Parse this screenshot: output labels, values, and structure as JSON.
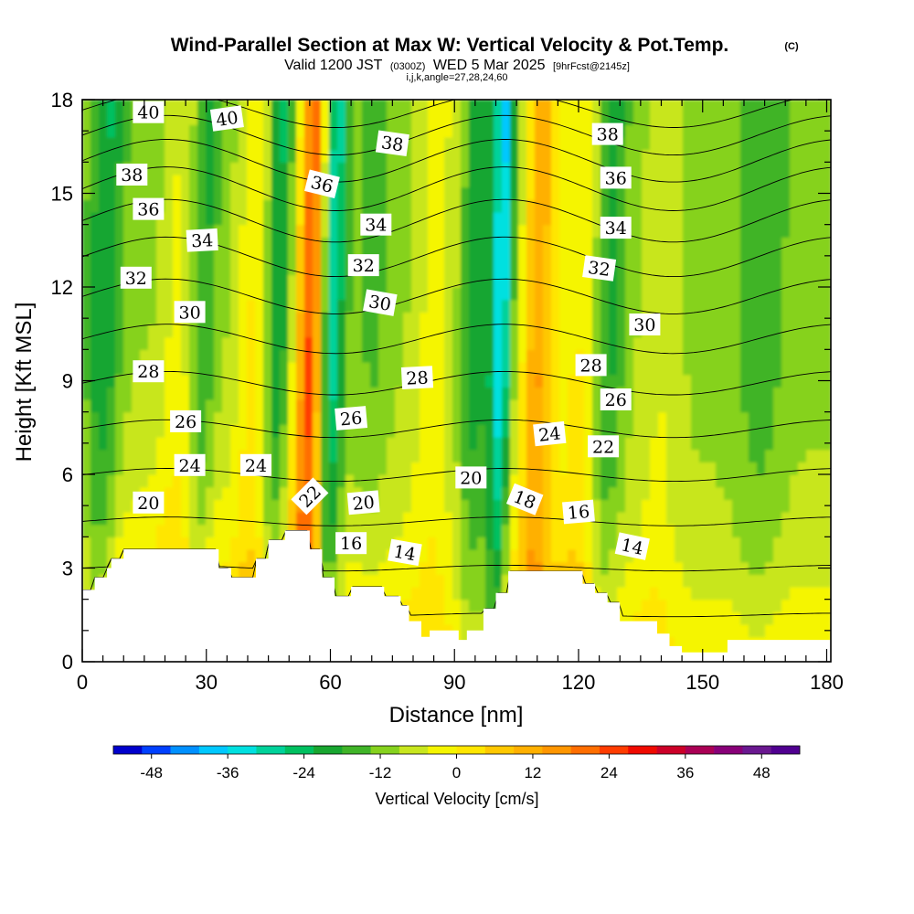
{
  "title": {
    "main": "Wind-Parallel Section at Max W: Vertical Velocity & Pot.Temp.",
    "copyright": "(C)",
    "valid_prefix": "Valid 1200 JST",
    "valid_utc": "(0300Z)",
    "valid_date": "WED 5 Mar 2025",
    "forecast": "[9hrFcst@2145z]",
    "ijk": "i,j,k,angle=27,28,24,60"
  },
  "chart_data": {
    "type": "heatmap",
    "xlabel": "Distance [nm]",
    "ylabel": "Height [Kft MSL]",
    "xlim": [
      0,
      181
    ],
    "ylim": [
      0,
      18
    ],
    "x_ticks": [
      "0",
      "30",
      "60",
      "90",
      "120",
      "150",
      "180"
    ],
    "y_ticks": [
      "0",
      "3",
      "6",
      "9",
      "12",
      "15",
      "18"
    ],
    "colorbar": {
      "title": "Vertical Velocity [cm/s]",
      "ticks": [
        "-48",
        "-36",
        "-24",
        "-12",
        "0",
        "12",
        "24",
        "36",
        "48"
      ],
      "range": [
        -54,
        54
      ],
      "bin_width": 6,
      "colors": [
        "#0000cc",
        "#0040ff",
        "#0090ff",
        "#00c8ff",
        "#00e0e0",
        "#00d29a",
        "#00c060",
        "#18a630",
        "#40b428",
        "#86d21e",
        "#c8e61e",
        "#f5f500",
        "#ffe600",
        "#ffc800",
        "#ffb000",
        "#ff9600",
        "#ff6e00",
        "#ff3c00",
        "#f00a00",
        "#cc0028",
        "#aa0055",
        "#880078",
        "#6a1890",
        "#500090"
      ]
    },
    "terrain_kft": [
      [
        0,
        2.3
      ],
      [
        3,
        2.3
      ],
      [
        3,
        2.7
      ],
      [
        6,
        2.7
      ],
      [
        6,
        3.0
      ],
      [
        7,
        3.0
      ],
      [
        7,
        3.3
      ],
      [
        10,
        3.3
      ],
      [
        10,
        3.6
      ],
      [
        33,
        3.6
      ],
      [
        33,
        3.0
      ],
      [
        36,
        3.0
      ],
      [
        36,
        2.7
      ],
      [
        42,
        2.7
      ],
      [
        42,
        3.3
      ],
      [
        45,
        3.3
      ],
      [
        45,
        3.9
      ],
      [
        49,
        3.9
      ],
      [
        49,
        4.2
      ],
      [
        55,
        4.2
      ],
      [
        55,
        3.6
      ],
      [
        58,
        3.6
      ],
      [
        58,
        2.7
      ],
      [
        61,
        2.7
      ],
      [
        61,
        2.1
      ],
      [
        65,
        2.1
      ],
      [
        65,
        2.4
      ],
      [
        73,
        2.4
      ],
      [
        73,
        2.1
      ],
      [
        77,
        2.1
      ],
      [
        77,
        1.8
      ],
      [
        79,
        1.8
      ],
      [
        79,
        1.3
      ],
      [
        82,
        1.3
      ],
      [
        82,
        0.8
      ],
      [
        84,
        0.8
      ],
      [
        84,
        1.0
      ],
      [
        91,
        1.0
      ],
      [
        91,
        0.7
      ],
      [
        93,
        0.7
      ],
      [
        93,
        1.0
      ],
      [
        97,
        1.0
      ],
      [
        97,
        1.7
      ],
      [
        100,
        1.7
      ],
      [
        100,
        2.2
      ],
      [
        103,
        2.2
      ],
      [
        103,
        2.9
      ],
      [
        121,
        2.9
      ],
      [
        121,
        2.5
      ],
      [
        124,
        2.5
      ],
      [
        124,
        2.2
      ],
      [
        127,
        2.2
      ],
      [
        127,
        1.9
      ],
      [
        130,
        1.9
      ],
      [
        130,
        1.3
      ],
      [
        139,
        1.3
      ],
      [
        139,
        0.9
      ],
      [
        142,
        0.9
      ],
      [
        142,
        0.5
      ],
      [
        145,
        0.5
      ],
      [
        145,
        0.3
      ],
      [
        156,
        0.3
      ],
      [
        156,
        0.7
      ],
      [
        181,
        0.7
      ]
    ],
    "w_structure": {
      "background": 3,
      "low_level_base": 14,
      "bands": [
        {
          "x": 5,
          "width": 4,
          "w": -16
        },
        {
          "x": 23,
          "width": 4,
          "w": 9
        },
        {
          "x": 29,
          "width": 3,
          "w": -12
        },
        {
          "x": 41,
          "width": 4,
          "w": 14
        },
        {
          "x": 47,
          "width": 3,
          "w": -18
        },
        {
          "x": 55,
          "width": 3.5,
          "w": 44
        },
        {
          "x": 60,
          "width": 3,
          "w": -30
        },
        {
          "x": 70,
          "width": 4,
          "w": -6
        },
        {
          "x": 85,
          "width": 5,
          "w": 11
        },
        {
          "x": 95,
          "width": 3.5,
          "w": -14
        },
        {
          "x": 101,
          "width": 2.5,
          "w": -34
        },
        {
          "x": 110,
          "width": 4,
          "w": 30
        },
        {
          "x": 120,
          "width": 5,
          "w": 13
        },
        {
          "x": 127,
          "width": 3.5,
          "w": -14
        },
        {
          "x": 140,
          "width": 5,
          "w": 7
        },
        {
          "x": 164,
          "width": 6,
          "w": -8
        }
      ],
      "tilt_kft_per_nm": 0.08
    },
    "theta_contours": {
      "min": 10,
      "max": 41,
      "step": 1,
      "labels": [
        {
          "x": 16,
          "y": 17.6,
          "text": "40",
          "angle": 0
        },
        {
          "x": 35,
          "y": 17.4,
          "text": "40",
          "angle": -8
        },
        {
          "x": 12,
          "y": 15.6,
          "text": "38",
          "angle": 0
        },
        {
          "x": 75,
          "y": 16.6,
          "text": "38",
          "angle": 8
        },
        {
          "x": 127,
          "y": 16.9,
          "text": "38",
          "angle": 0
        },
        {
          "x": 58,
          "y": 15.3,
          "text": "36",
          "angle": 14
        },
        {
          "x": 16,
          "y": 14.5,
          "text": "36",
          "angle": 0
        },
        {
          "x": 129,
          "y": 15.5,
          "text": "36",
          "angle": 0
        },
        {
          "x": 71,
          "y": 14.0,
          "text": "34",
          "angle": 0
        },
        {
          "x": 29,
          "y": 13.5,
          "text": "34",
          "angle": -3
        },
        {
          "x": 129,
          "y": 13.9,
          "text": "34",
          "angle": 0
        },
        {
          "x": 68,
          "y": 12.7,
          "text": "32",
          "angle": 0
        },
        {
          "x": 13,
          "y": 12.3,
          "text": "32",
          "angle": 0
        },
        {
          "x": 125,
          "y": 12.6,
          "text": "32",
          "angle": 8
        },
        {
          "x": 72,
          "y": 11.5,
          "text": "30",
          "angle": 10
        },
        {
          "x": 26,
          "y": 11.2,
          "text": "30",
          "angle": 0
        },
        {
          "x": 136,
          "y": 10.8,
          "text": "30",
          "angle": 0
        },
        {
          "x": 16,
          "y": 9.3,
          "text": "28",
          "angle": 0
        },
        {
          "x": 81,
          "y": 9.1,
          "text": "28",
          "angle": -3
        },
        {
          "x": 123,
          "y": 9.5,
          "text": "28",
          "angle": 0
        },
        {
          "x": 25,
          "y": 7.7,
          "text": "26",
          "angle": 0
        },
        {
          "x": 65,
          "y": 7.8,
          "text": "26",
          "angle": -5
        },
        {
          "x": 129,
          "y": 8.4,
          "text": "26",
          "angle": 0
        },
        {
          "x": 113,
          "y": 7.3,
          "text": "24",
          "angle": -6
        },
        {
          "x": 26,
          "y": 6.3,
          "text": "24",
          "angle": 0
        },
        {
          "x": 42,
          "y": 6.3,
          "text": "24",
          "angle": 0
        },
        {
          "x": 126,
          "y": 6.9,
          "text": "22",
          "angle": 0
        },
        {
          "x": 55,
          "y": 5.3,
          "text": "22",
          "angle": -45
        },
        {
          "x": 16,
          "y": 5.1,
          "text": "20",
          "angle": 0
        },
        {
          "x": 68,
          "y": 5.1,
          "text": "20",
          "angle": -5
        },
        {
          "x": 94,
          "y": 5.9,
          "text": "20",
          "angle": 0
        },
        {
          "x": 107,
          "y": 5.2,
          "text": "18",
          "angle": 22
        },
        {
          "x": 120,
          "y": 4.8,
          "text": "16",
          "angle": -5
        },
        {
          "x": 65,
          "y": 3.8,
          "text": "16",
          "angle": 0
        },
        {
          "x": 78,
          "y": 3.5,
          "text": "14",
          "angle": 10
        },
        {
          "x": 133,
          "y": 3.7,
          "text": "14",
          "angle": 12
        }
      ]
    }
  }
}
